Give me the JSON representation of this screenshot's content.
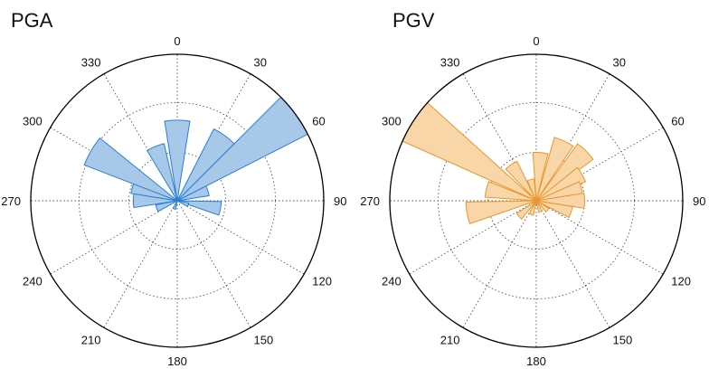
{
  "chart_data": [
    {
      "type": "polar-histogram",
      "title": "PGA",
      "angle_zero": "top",
      "angle_direction": "clockwise",
      "angle_ticks": [
        0,
        30,
        60,
        90,
        120,
        150,
        180,
        210,
        240,
        270,
        300,
        330
      ],
      "radial_rings": [
        0.33,
        0.67,
        1.0
      ],
      "grid": true,
      "bin_width_deg": 18,
      "color": "#a8c8ea",
      "edge_color": "#2a7fd4",
      "bins": [
        {
          "center": 0,
          "value": 0.55
        },
        {
          "center": 36,
          "value": 0.55
        },
        {
          "center": 54,
          "value": 1.0
        },
        {
          "center": 72,
          "value": 0.22
        },
        {
          "center": 100,
          "value": 0.3
        },
        {
          "center": 110,
          "value": 0.08
        },
        {
          "center": 200,
          "value": 0.06
        },
        {
          "center": 250,
          "value": 0.15
        },
        {
          "center": 270,
          "value": 0.3
        },
        {
          "center": 288,
          "value": 0.32
        },
        {
          "center": 300,
          "value": 0.68
        },
        {
          "center": 338,
          "value": 0.4
        }
      ]
    },
    {
      "type": "polar-histogram",
      "title": "PGV",
      "angle_zero": "top",
      "angle_direction": "clockwise",
      "angle_ticks": [
        0,
        30,
        60,
        90,
        120,
        150,
        180,
        210,
        240,
        270,
        300,
        330
      ],
      "radial_rings": [
        0.33,
        0.67,
        1.0
      ],
      "grid": true,
      "bin_width_deg": 18,
      "color": "#f9d6a8",
      "edge_color": "#e8962f",
      "bins": [
        {
          "center": 5,
          "value": 0.33
        },
        {
          "center": 25,
          "value": 0.45
        },
        {
          "center": 45,
          "value": 0.48
        },
        {
          "center": 60,
          "value": 0.36
        },
        {
          "center": 75,
          "value": 0.32
        },
        {
          "center": 90,
          "value": 0.33
        },
        {
          "center": 108,
          "value": 0.25
        },
        {
          "center": 130,
          "value": 0.1
        },
        {
          "center": 160,
          "value": 0.08
        },
        {
          "center": 200,
          "value": 0.1
        },
        {
          "center": 228,
          "value": 0.16
        },
        {
          "center": 260,
          "value": 0.48
        },
        {
          "center": 283,
          "value": 0.35
        },
        {
          "center": 303,
          "value": 1.0
        },
        {
          "center": 325,
          "value": 0.3
        },
        {
          "center": 345,
          "value": 0.15
        }
      ]
    }
  ]
}
